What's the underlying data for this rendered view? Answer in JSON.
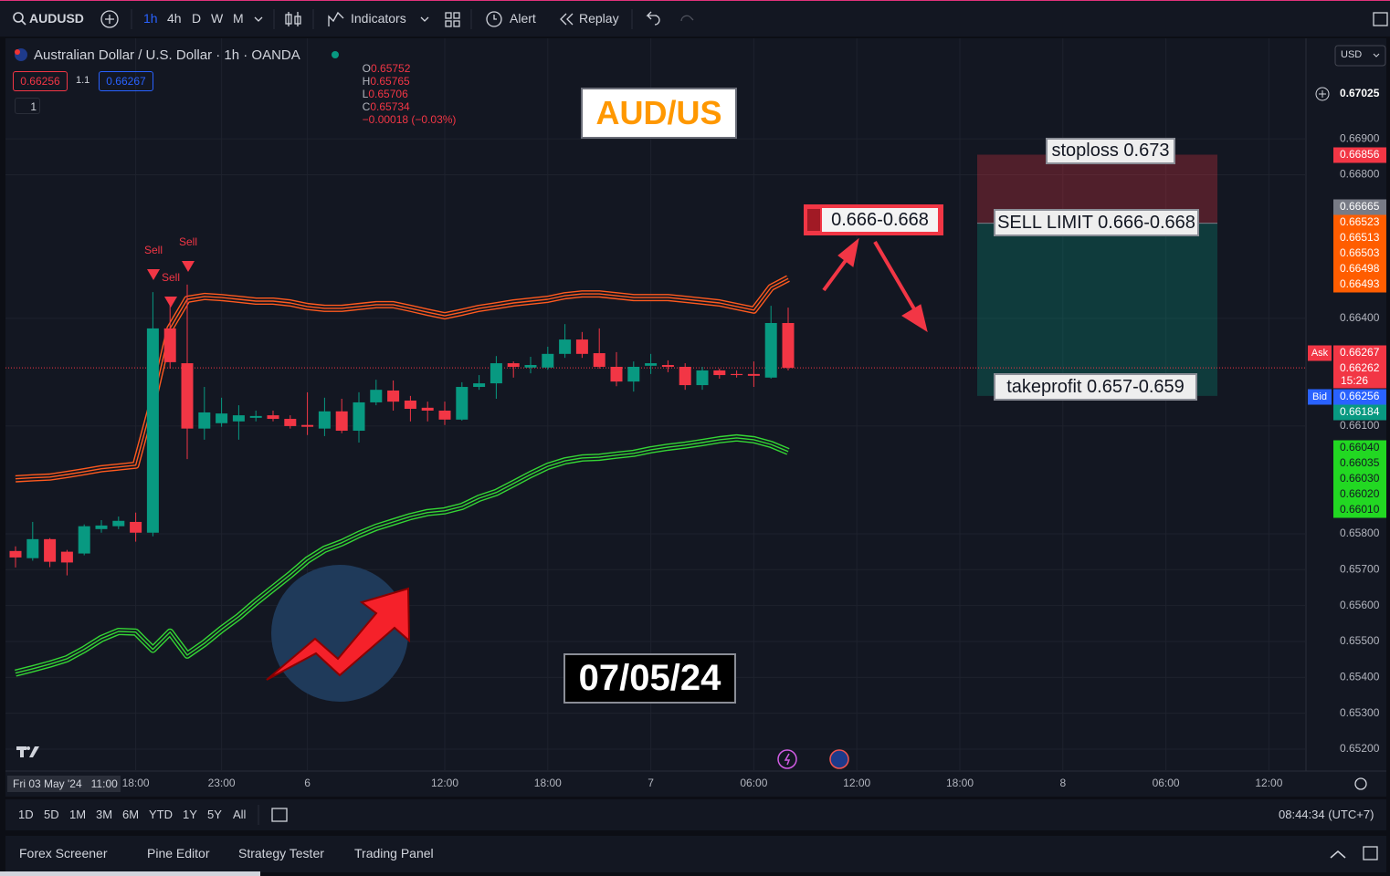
{
  "toolbar": {
    "symbol": "AUDUSD",
    "intervals": [
      "1h",
      "4h",
      "D",
      "W",
      "M"
    ],
    "indicators": "Indicators",
    "alert": "Alert",
    "replay": "Replay"
  },
  "header": {
    "title": "Australian Dollar / U.S. Dollar · 1h · OANDA",
    "ohlc_keys": [
      "O",
      "H",
      "L",
      "C"
    ],
    "change": "−0.00018 (−0.03%)",
    "sell": 0.66256,
    "spread": "1.1",
    "buy": 0.66267,
    "layers": "1",
    "currency": "USD"
  },
  "chart_data": {
    "type": "candlestick",
    "categories": [
      null,
      null,
      null,
      null,
      null,
      null,
      null,
      "18:00",
      null,
      null,
      null,
      null,
      "23:00",
      null,
      null,
      null,
      null,
      "6",
      null,
      null,
      null,
      null,
      null,
      null,
      null,
      "12:00",
      null,
      null,
      null,
      null,
      null,
      "18:00",
      null,
      null,
      null,
      null,
      null,
      "7",
      null,
      null,
      null,
      null,
      null,
      "06:00",
      null,
      null,
      null,
      null,
      null,
      "12:00",
      null,
      null,
      null,
      null,
      null,
      "18:00",
      null,
      null,
      null,
      null,
      null,
      "8",
      null,
      null,
      null,
      null,
      null,
      "06:00",
      null,
      null,
      null,
      null,
      null,
      "12:00",
      null,
      null
    ],
    "open": [
      0.65752,
      0.65732,
      0.65785,
      0.6575,
      0.65745,
      0.65813,
      0.65821,
      0.65833,
      0.65803,
      0.66372,
      0.66275,
      0.66093,
      0.66108,
      0.66113,
      0.66123,
      0.6613,
      0.6612,
      0.66103,
      0.66093,
      0.66141,
      0.66087,
      0.66166,
      0.66199,
      0.66171,
      0.66151,
      0.66143,
      0.66118,
      0.66209,
      0.66219,
      0.66275,
      0.66263,
      0.66263,
      0.66301,
      0.66341,
      0.66303,
      0.66265,
      0.66224,
      0.66268,
      0.6627,
      0.66265,
      0.66214,
      0.66255,
      0.66245,
      0.66245,
      0.66235,
      0.66387,
      null,
      null,
      null,
      null,
      null,
      null,
      null,
      null,
      null,
      null,
      null,
      null,
      null,
      null,
      null,
      null,
      null,
      null,
      null,
      null,
      null,
      null,
      null,
      null,
      null,
      null,
      null,
      null,
      null,
      null
    ],
    "high": [
      0.65765,
      0.65833,
      0.65788,
      0.65755,
      0.65826,
      0.65838,
      0.65848,
      0.65859,
      0.66473,
      0.66438,
      0.66494,
      0.66209,
      0.66179,
      0.66158,
      0.66143,
      0.66143,
      0.6613,
      0.66194,
      0.66179,
      0.66176,
      0.66194,
      0.66229,
      0.66227,
      0.66184,
      0.66168,
      0.66168,
      0.66222,
      0.66242,
      0.66295,
      0.6628,
      0.66293,
      0.66321,
      0.66384,
      0.66362,
      0.66372,
      0.66306,
      0.6628,
      0.66301,
      0.66283,
      0.66275,
      0.66265,
      0.6626,
      0.66255,
      0.6628,
      0.66435,
      0.6643,
      null,
      null,
      null,
      null,
      null,
      null,
      null,
      null,
      null,
      null,
      null,
      null,
      null,
      null,
      null,
      null,
      null,
      null,
      null,
      null,
      null,
      null,
      null,
      null,
      null,
      null,
      null,
      null,
      null,
      null
    ],
    "low": [
      0.65706,
      0.65725,
      0.65707,
      0.65684,
      0.6574,
      0.65803,
      0.65813,
      0.65778,
      0.65793,
      0.6626,
      0.66008,
      0.66062,
      0.66098,
      0.66062,
      0.66113,
      0.66113,
      0.66093,
      0.66075,
      0.66072,
      0.6608,
      0.66054,
      0.66158,
      0.66143,
      0.66113,
      0.66113,
      0.66103,
      0.66115,
      0.66201,
      0.66176,
      0.66235,
      0.66247,
      0.66257,
      0.6629,
      0.6629,
      0.6626,
      0.66211,
      0.66196,
      0.66245,
      0.6625,
      0.66201,
      0.66201,
      0.66232,
      0.66235,
      0.66209,
      0.66232,
      0.66255,
      null,
      null,
      null,
      null,
      null,
      null,
      null,
      null,
      null,
      null,
      null,
      null,
      null,
      null,
      null,
      null,
      null,
      null,
      null,
      null,
      null,
      null,
      null,
      null,
      null,
      null,
      null,
      null,
      null,
      null
    ],
    "close": [
      0.65734,
      0.65785,
      0.65722,
      0.6572,
      0.65821,
      0.65823,
      0.65836,
      0.65803,
      0.66372,
      0.66278,
      0.66093,
      0.66138,
      0.66135,
      0.6613,
      0.66128,
      0.6612,
      0.661,
      0.66098,
      0.66141,
      0.66087,
      0.66166,
      0.66201,
      0.66168,
      0.66148,
      0.66143,
      0.66118,
      0.66209,
      0.66219,
      0.66275,
      0.66265,
      0.6627,
      0.66301,
      0.66341,
      0.66301,
      0.66265,
      0.66224,
      0.66265,
      0.66275,
      0.66265,
      0.66214,
      0.66255,
      0.66242,
      0.66242,
      0.6624,
      0.66387,
      0.66262,
      null,
      null,
      null,
      null,
      null,
      null,
      null,
      null,
      null,
      null,
      null,
      null,
      null,
      null,
      null,
      null,
      null,
      null,
      null,
      null,
      null,
      null,
      null,
      null,
      null,
      null,
      null,
      null,
      null,
      null
    ],
    "up_color": "#089981",
    "down_color": "#f23645",
    "overlays": [
      {
        "color": "#ff5a1f",
        "values": [
          0.65953,
          0.65956,
          0.65958,
          0.65965,
          0.65973,
          0.65981,
          0.65986,
          0.65991,
          0.66168,
          0.66372,
          0.66453,
          0.66461,
          0.66458,
          0.66453,
          0.66448,
          0.66448,
          0.66443,
          0.66433,
          0.66428,
          0.66428,
          0.66433,
          0.66438,
          0.66438,
          0.66428,
          0.66417,
          0.66407,
          0.66417,
          0.66428,
          0.66435,
          0.66443,
          0.66448,
          0.66453,
          0.66463,
          0.66468,
          0.66468,
          0.66463,
          0.66458,
          0.66458,
          0.66458,
          0.66453,
          0.66448,
          0.66443,
          0.66433,
          0.66423,
          0.66486,
          0.66511,
          null,
          null,
          null,
          null,
          null,
          null,
          null,
          null,
          null,
          null,
          null,
          null,
          null,
          null,
          null,
          null,
          null,
          null,
          null,
          null,
          null,
          null,
          null,
          null,
          null,
          null,
          null,
          null,
          null,
          null
        ]
      },
      {
        "color": "#35d635",
        "values": [
          0.65412,
          0.65424,
          0.65437,
          0.65452,
          0.65478,
          0.65508,
          0.65528,
          0.65526,
          0.65478,
          0.65526,
          0.65462,
          0.65495,
          0.65534,
          0.65569,
          0.6561,
          0.65648,
          0.65686,
          0.65727,
          0.65757,
          0.65775,
          0.65798,
          0.65818,
          0.65833,
          0.65848,
          0.65859,
          0.65864,
          0.65876,
          0.65899,
          0.65915,
          0.6594,
          0.65965,
          0.65988,
          0.66003,
          0.66011,
          0.66013,
          0.66019,
          0.66024,
          0.66034,
          0.66041,
          0.66047,
          0.66054,
          0.66062,
          0.66067,
          0.66062,
          0.66049,
          0.66029,
          null,
          null,
          null,
          null,
          null,
          null,
          null,
          null,
          null,
          null,
          null,
          null,
          null,
          null,
          null,
          null,
          null,
          null,
          null,
          null,
          null,
          null,
          null,
          null,
          null,
          null,
          null,
          null,
          null,
          null
        ]
      }
    ],
    "ylim": [
      0.65139,
      0.6718
    ],
    "yticks": [
      {
        "value": 0.669,
        "label": "0.66900"
      },
      {
        "value": 0.668,
        "label": "0.66800"
      },
      {
        "value": 0.664,
        "label": "0.66400"
      },
      {
        "value": 0.661,
        "label": "0.66100"
      },
      {
        "value": 0.658,
        "label": "0.65800"
      },
      {
        "value": 0.657,
        "label": "0.65700"
      },
      {
        "value": 0.656,
        "label": "0.65600"
      },
      {
        "value": 0.655,
        "label": "0.65500"
      },
      {
        "value": 0.654,
        "label": "0.65400"
      },
      {
        "value": 0.653,
        "label": "0.65300"
      },
      {
        "value": 0.652,
        "label": "0.65200"
      }
    ],
    "grid": true,
    "price_labels": [
      {
        "value": 0.67025,
        "label": "0.67025",
        "color": "#131722"
      },
      {
        "value": 0.66856,
        "label": "0.66856",
        "color": "#f23645"
      },
      {
        "value": 0.66665,
        "label": "0.66665",
        "color": "#787b86"
      },
      {
        "value": 0.66523,
        "label": "0.66523",
        "color": "#ff5d00"
      },
      {
        "value": 0.66513,
        "label": "0.66513",
        "color": "#ff5d00"
      },
      {
        "value": 0.66503,
        "label": "0.66503",
        "color": "#ff5d00"
      },
      {
        "value": 0.66498,
        "label": "0.66498",
        "color": "#ff5d00"
      },
      {
        "value": 0.66493,
        "label": "0.66493",
        "color": "#ff5d00"
      },
      {
        "value": 0.66267,
        "label": "0.66267",
        "color": "#f23645",
        "tag": "Ask"
      },
      {
        "value": 0.66262,
        "label": "0.66262",
        "color": "#f23645",
        "countdown": "15:26"
      },
      {
        "value": 0.66256,
        "label": "0.66256",
        "color": "#2962ff",
        "tag": "Bid"
      },
      {
        "value": 0.66184,
        "label": "0.66184",
        "color": "#089981"
      },
      {
        "value": 0.6604,
        "label": "0.66040",
        "color": "#22d822",
        "text_color": "#131722"
      },
      {
        "value": 0.66035,
        "label": "0.66035",
        "color": "#22d822",
        "text_color": "#131722"
      },
      {
        "value": 0.6603,
        "label": "0.66030",
        "color": "#22d822",
        "text_color": "#131722"
      },
      {
        "value": 0.6602,
        "label": "0.66020",
        "color": "#22d822",
        "text_color": "#131722"
      },
      {
        "value": 0.6601,
        "label": "0.66010",
        "color": "#22d822",
        "text_color": "#131722"
      }
    ],
    "signals": [
      "Sell",
      "Sell",
      "Sell"
    ],
    "annotations": [
      "AUD/US",
      "0.666-0.668",
      "stoploss 0.673",
      "SELL LIMIT 0.666-0.668",
      "takeprofit 0.657-0.659",
      "07/05/24"
    ],
    "cursor_label": "Fri 03 May '24   11:00"
  },
  "range_bar": {
    "ranges": [
      "1D",
      "5D",
      "1M",
      "3M",
      "6M",
      "YTD",
      "1Y",
      "5Y",
      "All"
    ],
    "clock": "08:44:34 (UTC+7)"
  },
  "footer_tabs": [
    "Forex Screener",
    "Pine Editor",
    "Strategy Tester",
    "Trading Panel"
  ]
}
